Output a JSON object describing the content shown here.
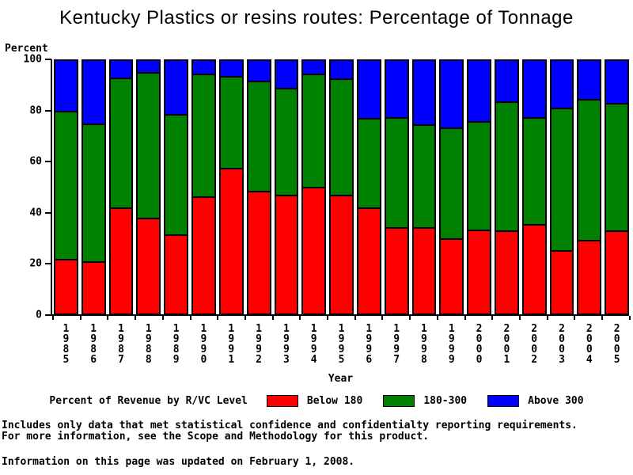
{
  "chart_data": {
    "type": "bar",
    "stacked": true,
    "title": "Kentucky Plastics or resins routes: Percentage of Tonnage",
    "ylabel": "Percent",
    "xlabel": "Year",
    "ylim": [
      0,
      100
    ],
    "yticks": [
      0,
      20,
      40,
      60,
      80,
      100
    ],
    "grid": false,
    "legend_position": "bottom",
    "legend_title": "Percent of Revenue by R/VC Level",
    "categories": [
      "1985",
      "1986",
      "1987",
      "1988",
      "1989",
      "1990",
      "1991",
      "1992",
      "1993",
      "1994",
      "1995",
      "1996",
      "1997",
      "1998",
      "1999",
      "2000",
      "2001",
      "2002",
      "2003",
      "2004",
      "2005"
    ],
    "series": [
      {
        "name": "Below 180",
        "color": "#ff0000",
        "values": [
          22,
          21,
          42,
          38,
          31.5,
          46.5,
          57.5,
          48.5,
          47,
          50,
          47,
          42,
          34.5,
          34.5,
          30,
          33.5,
          33,
          35.5,
          25.5,
          29.5,
          33
        ]
      },
      {
        "name": "180-300",
        "color": "#008000",
        "values": [
          58,
          54,
          51,
          57,
          47,
          48,
          36,
          43,
          42,
          44.5,
          45.5,
          35,
          43,
          40,
          43.5,
          42.5,
          50.5,
          42,
          55.5,
          55,
          50
        ]
      },
      {
        "name": "Above 300",
        "color": "#0000ff",
        "values": [
          20,
          25,
          7,
          5,
          21.5,
          5.5,
          6.5,
          8.5,
          11,
          5.5,
          7.5,
          23,
          22.5,
          25.5,
          26.5,
          24,
          16.5,
          22.5,
          19,
          15.5,
          17
        ]
      }
    ]
  },
  "footer": {
    "line1": "Includes only data that met statistical confidence and confidentialty reporting requirements.",
    "line2": "For more information, see the Scope and Methodology for this product.",
    "line3": "Information on this page was updated on February 1, 2008."
  }
}
